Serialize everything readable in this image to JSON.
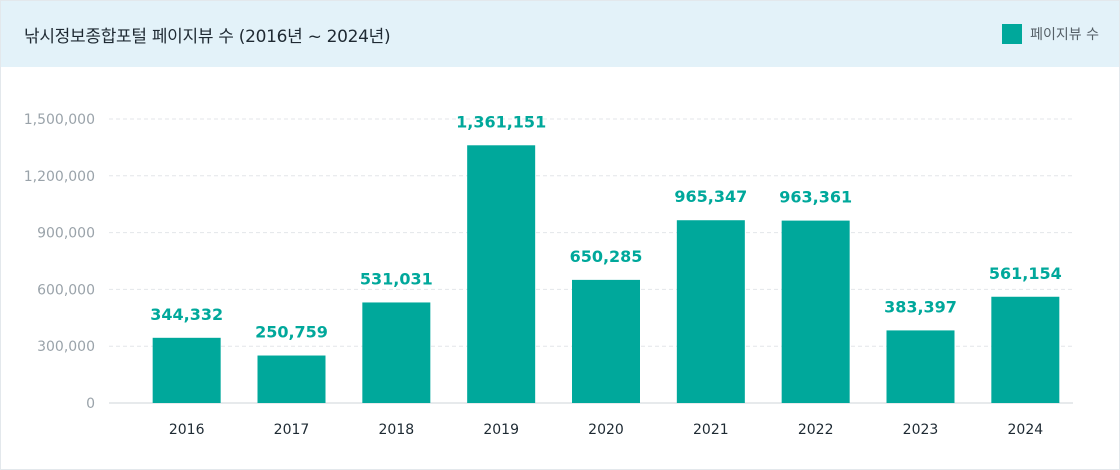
{
  "header": {
    "title": "낚시정보종합포털 페이지뷰 수 (2016년 ~ 2024년)",
    "legend_label": "페이지뷰 수"
  },
  "colors": {
    "bar": "#00a89b",
    "header_bg": "#e3f2f9"
  },
  "chart_data": {
    "type": "bar",
    "title": "낚시정보종합포털 페이지뷰 수 (2016년 ~ 2024년)",
    "categories": [
      "2016",
      "2017",
      "2018",
      "2019",
      "2020",
      "2021",
      "2022",
      "2023",
      "2024"
    ],
    "series": [
      {
        "name": "페이지뷰 수",
        "values": [
          344332,
          250759,
          531031,
          1361151,
          650285,
          965347,
          963361,
          383397,
          561154
        ],
        "labels": [
          "344,332",
          "250,759",
          "531,031",
          "1,361,151",
          "650,285",
          "965,347",
          "963,361",
          "383,397",
          "561,154"
        ]
      }
    ],
    "ylim": [
      0,
      1500000
    ],
    "yticks": [
      0,
      300000,
      600000,
      900000,
      1200000,
      1500000
    ],
    "ytick_labels": [
      "0",
      "300,000",
      "600,000",
      "900,000",
      "1,200,000",
      "1,500,000"
    ],
    "grid": true,
    "legend_position": "top-right"
  }
}
